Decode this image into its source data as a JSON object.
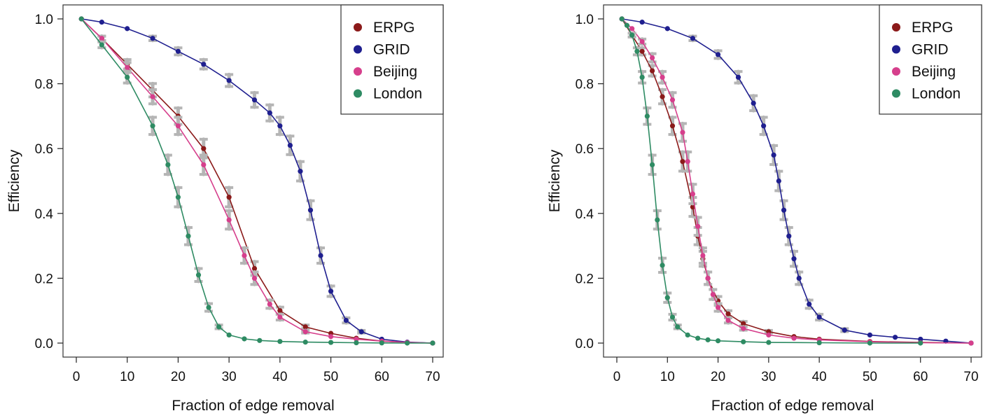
{
  "colors": {
    "ERPG": "#8b1a1a",
    "GRID": "#1f1f8f",
    "Beijing": "#d63f8c",
    "London": "#2e8b63",
    "errorbar": "#b5b5b5"
  },
  "chart_data": [
    {
      "type": "line",
      "xlabel": "Fraction of edge removal",
      "ylabel": "Efficiency",
      "xlim": [
        0,
        70
      ],
      "ylim": [
        0.0,
        1.0
      ],
      "xticks": [
        0,
        10,
        20,
        30,
        40,
        50,
        60,
        70
      ],
      "yticks": [
        0.0,
        0.2,
        0.4,
        0.6,
        0.8,
        1.0
      ],
      "xtick_labels": [
        "0",
        "10",
        "20",
        "30",
        "40",
        "50",
        "60",
        "70"
      ],
      "ytick_labels": [
        "0.0",
        "0.2",
        "0.4",
        "0.6",
        "0.8",
        "1.0"
      ],
      "legend_position": "top-right",
      "series": [
        {
          "name": "ERPG",
          "x": [
            1,
            5,
            10,
            15,
            20,
            25,
            30,
            35,
            40,
            45,
            50,
            55,
            60,
            65,
            70
          ],
          "y": [
            1.0,
            0.94,
            0.86,
            0.78,
            0.7,
            0.6,
            0.45,
            0.23,
            0.1,
            0.05,
            0.03,
            0.015,
            0.006,
            0.002,
            0.0
          ]
        },
        {
          "name": "GRID",
          "x": [
            1,
            5,
            10,
            15,
            20,
            25,
            30,
            35,
            38,
            40,
            42,
            44,
            46,
            48,
            50,
            53,
            56,
            60,
            65,
            70
          ],
          "y": [
            1.0,
            0.99,
            0.97,
            0.94,
            0.9,
            0.86,
            0.81,
            0.75,
            0.71,
            0.67,
            0.61,
            0.53,
            0.41,
            0.27,
            0.16,
            0.07,
            0.035,
            0.012,
            0.003,
            0.0
          ]
        },
        {
          "name": "Beijing",
          "x": [
            1,
            5,
            10,
            15,
            20,
            25,
            30,
            33,
            35,
            38,
            40,
            45,
            50,
            55,
            60,
            65,
            70
          ],
          "y": [
            1.0,
            0.94,
            0.85,
            0.76,
            0.67,
            0.55,
            0.38,
            0.27,
            0.2,
            0.12,
            0.08,
            0.035,
            0.02,
            0.012,
            0.006,
            0.002,
            0.0
          ]
        },
        {
          "name": "London",
          "x": [
            1,
            5,
            10,
            15,
            18,
            20,
            22,
            24,
            26,
            28,
            30,
            33,
            36,
            40,
            45,
            50,
            55,
            60,
            65,
            70
          ],
          "y": [
            1.0,
            0.92,
            0.82,
            0.67,
            0.55,
            0.45,
            0.33,
            0.21,
            0.11,
            0.05,
            0.025,
            0.013,
            0.008,
            0.005,
            0.003,
            0.002,
            0.001,
            0.0005,
            0.0,
            0.0
          ]
        }
      ]
    },
    {
      "type": "line",
      "xlabel": "Fraction of edge removal",
      "ylabel": "Efficiency",
      "xlim": [
        0,
        70
      ],
      "ylim": [
        0.0,
        1.0
      ],
      "xticks": [
        0,
        10,
        20,
        30,
        40,
        50,
        60,
        70
      ],
      "yticks": [
        0.0,
        0.2,
        0.4,
        0.6,
        0.8,
        1.0
      ],
      "xtick_labels": [
        "0",
        "10",
        "20",
        "30",
        "40",
        "50",
        "60",
        "70"
      ],
      "ytick_labels": [
        "0.0",
        "0.2",
        "0.4",
        "0.6",
        "0.8",
        "1.0"
      ],
      "legend_position": "top-right",
      "series": [
        {
          "name": "ERPG",
          "x": [
            1,
            3,
            5,
            7,
            9,
            11,
            13,
            15,
            16,
            17,
            18,
            20,
            22,
            25,
            30,
            35,
            40,
            50,
            60,
            70
          ],
          "y": [
            1.0,
            0.95,
            0.9,
            0.84,
            0.76,
            0.67,
            0.56,
            0.42,
            0.33,
            0.26,
            0.2,
            0.13,
            0.09,
            0.06,
            0.035,
            0.02,
            0.012,
            0.005,
            0.002,
            0.0
          ]
        },
        {
          "name": "GRID",
          "x": [
            1,
            5,
            10,
            15,
            20,
            24,
            27,
            29,
            31,
            32,
            33,
            34,
            35,
            36,
            38,
            40,
            45,
            50,
            55,
            60,
            65,
            70
          ],
          "y": [
            1.0,
            0.99,
            0.97,
            0.94,
            0.89,
            0.82,
            0.74,
            0.67,
            0.58,
            0.5,
            0.41,
            0.33,
            0.26,
            0.2,
            0.12,
            0.08,
            0.04,
            0.025,
            0.018,
            0.012,
            0.006,
            0.0
          ]
        },
        {
          "name": "Beijing",
          "x": [
            1,
            3,
            5,
            7,
            9,
            11,
            13,
            14,
            15,
            16,
            17,
            18,
            19,
            20,
            22,
            25,
            30,
            35,
            40,
            50,
            60,
            70
          ],
          "y": [
            1.0,
            0.97,
            0.93,
            0.88,
            0.82,
            0.75,
            0.65,
            0.56,
            0.46,
            0.36,
            0.27,
            0.2,
            0.15,
            0.11,
            0.07,
            0.045,
            0.025,
            0.015,
            0.01,
            0.004,
            0.001,
            0.0
          ]
        },
        {
          "name": "London",
          "x": [
            1,
            2,
            3,
            4,
            5,
            6,
            7,
            8,
            9,
            10,
            11,
            12,
            14,
            16,
            18,
            20,
            25,
            30,
            40,
            50,
            60
          ],
          "y": [
            1.0,
            0.98,
            0.95,
            0.9,
            0.82,
            0.7,
            0.55,
            0.38,
            0.24,
            0.14,
            0.08,
            0.05,
            0.025,
            0.015,
            0.01,
            0.007,
            0.004,
            0.002,
            0.001,
            0.0,
            0.0
          ]
        }
      ]
    }
  ]
}
